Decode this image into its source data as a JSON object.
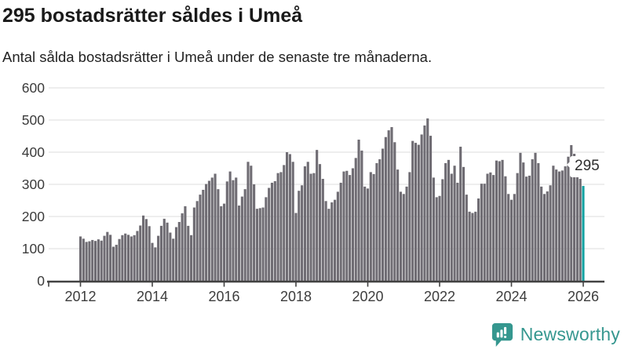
{
  "header": {
    "title": "295 bostadsrätter såldes i Umeå",
    "subtitle": "Antal sålda bostadsrätter i Umeå under de senaste tre månaderna."
  },
  "chart_data": {
    "type": "bar",
    "title": "295 bostadsrätter såldes i Umeå",
    "xlabel": "",
    "ylabel": "",
    "x_start": "2012-01",
    "x_end": "2026-01",
    "frequency": "monthly",
    "ylim": [
      0,
      600
    ],
    "grid": true,
    "yticks": [
      "0",
      "100",
      "200",
      "300",
      "400",
      "500",
      "600"
    ],
    "ytick_values": [
      0,
      100,
      200,
      300,
      400,
      500,
      600
    ],
    "xticks": [
      "2012",
      "2014",
      "2016",
      "2018",
      "2020",
      "2022",
      "2024",
      "2026"
    ],
    "xtick_years": [
      2012,
      2014,
      2016,
      2018,
      2020,
      2022,
      2024,
      2026
    ],
    "bar_color": "#6f6c73",
    "highlight": {
      "index": 168,
      "month": "2026-01",
      "value": 295,
      "label": "295",
      "color": "#14a2a2"
    },
    "values": [
      138,
      131,
      121,
      123,
      127,
      124,
      129,
      125,
      140,
      152,
      143,
      106,
      112,
      130,
      142,
      147,
      143,
      138,
      142,
      155,
      172,
      203,
      192,
      170,
      118,
      104,
      140,
      171,
      193,
      181,
      150,
      131,
      167,
      183,
      210,
      232,
      171,
      142,
      228,
      248,
      268,
      283,
      301,
      311,
      321,
      333,
      285,
      232,
      240,
      309,
      340,
      313,
      321,
      234,
      262,
      285,
      370,
      358,
      300,
      224,
      226,
      228,
      260,
      289,
      305,
      310,
      335,
      338,
      360,
      400,
      394,
      370,
      211,
      280,
      297,
      356,
      370,
      333,
      335,
      407,
      363,
      317,
      248,
      224,
      244,
      252,
      277,
      305,
      340,
      342,
      329,
      350,
      382,
      439,
      405,
      293,
      287,
      338,
      332,
      366,
      378,
      411,
      447,
      468,
      478,
      431,
      346,
      277,
      270,
      293,
      338,
      435,
      429,
      423,
      455,
      483,
      505,
      451,
      321,
      260,
      264,
      316,
      366,
      376,
      333,
      358,
      305,
      417,
      354,
      268,
      215,
      211,
      215,
      256,
      302,
      302,
      333,
      337,
      329,
      374,
      372,
      376,
      325,
      270,
      252,
      270,
      335,
      398,
      368,
      324,
      327,
      378,
      398,
      366,
      293,
      270,
      278,
      297,
      358,
      346,
      340,
      343,
      356,
      386,
      422,
      395,
      340,
      317,
      295
    ]
  },
  "annotation": {
    "label": "295"
  },
  "footer": {
    "brand": "Newsworthy",
    "brand_color": "#35978f"
  }
}
